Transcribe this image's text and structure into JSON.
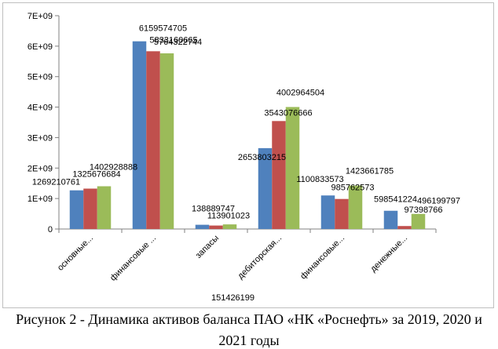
{
  "chart_data": {
    "type": "bar",
    "categories": [
      "основные...",
      "финансовые ...",
      "запасы",
      "дебиторская...",
      "финансовые...",
      "денежные..."
    ],
    "series": [
      {
        "color": "#4f81bd",
        "values": [
          1269210761,
          6159574705,
          138889747,
          2653803215,
          1100833573,
          598541224
        ]
      },
      {
        "color": "#c0504d",
        "values": [
          1325676684,
          5833160665,
          113901023,
          3543076666,
          985762573,
          97398766
        ]
      },
      {
        "color": "#9bbb59",
        "values": [
          1402928888,
          5764322744,
          151426199,
          4002964504,
          1423661785,
          496199797
        ]
      }
    ],
    "y_ticks": [
      "0",
      "1E+09",
      "2E+09",
      "3E+09",
      "4E+09",
      "5E+09",
      "6E+09",
      "7E+09"
    ],
    "ylim": [
      0,
      7000000000
    ],
    "grid": false,
    "legend": "none",
    "data_labels": [
      [
        "1269210761",
        "1325676684",
        "1402928888"
      ],
      [
        "6159574705",
        "5833160665",
        "5764322744"
      ],
      [
        "138889747",
        "113901023",
        "151426199"
      ],
      [
        "2653803215",
        "3543076666",
        "4002964504"
      ],
      [
        "1100833573",
        "985762573",
        "1423661785"
      ],
      [
        "598541224",
        "97398766",
        "496199797"
      ]
    ]
  },
  "caption": {
    "line1": "Рисунок 2 - Динамика активов баланса ПАО «НК «Роснефть» за 2019, 2020 и",
    "line2": "2021 годы"
  }
}
